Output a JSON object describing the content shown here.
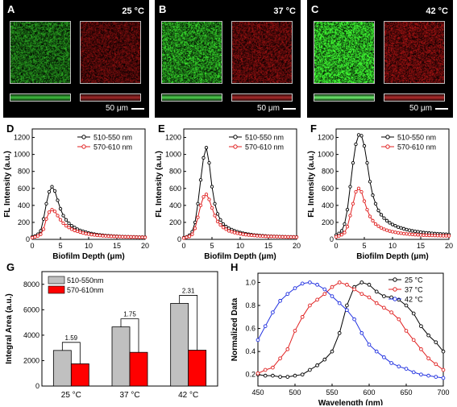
{
  "micrographs": [
    {
      "label": "A",
      "temp": "25 °C",
      "scale": "50 μm",
      "green": "#2c9a2c",
      "red": "#8a1d1d",
      "green_level": 0.45,
      "red_level": 0.4
    },
    {
      "label": "B",
      "temp": "37 °C",
      "scale": "50 μm",
      "green": "#37b037",
      "red": "#8a1d1d",
      "green_level": 0.6,
      "red_level": 0.45
    },
    {
      "label": "C",
      "temp": "42 °C",
      "scale": "50 μm",
      "green": "#5fe05f",
      "red": "#8f2020",
      "green_level": 0.85,
      "red_level": 0.5
    }
  ],
  "chart_data": [
    {
      "panel": "D",
      "type": "line",
      "xlabel": "Biofilm Depth (μm)",
      "ylabel": "FL Intensity (a.u.)",
      "xlim": [
        0,
        20
      ],
      "ylim": [
        0,
        1300
      ],
      "xticks": [
        "0",
        "5",
        "10",
        "15",
        "20"
      ],
      "yticks": [
        "0",
        "200",
        "400",
        "600",
        "800",
        "1000",
        "1200"
      ],
      "legend": "top-right",
      "x": [
        0,
        0.5,
        1,
        1.5,
        2,
        2.5,
        3,
        3.5,
        4,
        4.5,
        5,
        5.5,
        6,
        6.5,
        7,
        7.5,
        8,
        8.5,
        9,
        9.5,
        10,
        10.5,
        11,
        11.5,
        12,
        12.5,
        13,
        13.5,
        14,
        14.5,
        15,
        15.5,
        16,
        16.5,
        17,
        17.5,
        18,
        18.5,
        19,
        19.5,
        20
      ],
      "series": [
        {
          "name": "510-550 nm",
          "color": "#000000",
          "values": [
            30,
            40,
            60,
            100,
            240,
            420,
            560,
            620,
            570,
            460,
            360,
            280,
            230,
            190,
            160,
            140,
            120,
            105,
            95,
            85,
            75,
            68,
            62,
            56,
            52,
            48,
            45,
            42,
            40,
            38,
            36,
            34,
            33,
            32,
            31,
            30,
            29,
            28,
            27,
            27,
            26
          ]
        },
        {
          "name": "570-610 nm",
          "color": "#e02020",
          "values": [
            20,
            30,
            40,
            60,
            120,
            240,
            320,
            350,
            330,
            280,
            230,
            190,
            160,
            140,
            120,
            105,
            95,
            85,
            75,
            68,
            62,
            56,
            52,
            48,
            45,
            42,
            40,
            38,
            36,
            34,
            33,
            32,
            31,
            30,
            29,
            28,
            27,
            26,
            25,
            25,
            24
          ]
        }
      ]
    },
    {
      "panel": "E",
      "type": "line",
      "xlabel": "Biofilm Depth (μm)",
      "ylabel": "FL Intensity (a.u.)",
      "xlim": [
        0,
        20
      ],
      "ylim": [
        0,
        1300
      ],
      "xticks": [
        "0",
        "5",
        "10",
        "15",
        "20"
      ],
      "yticks": [
        "0",
        "200",
        "400",
        "600",
        "800",
        "1000",
        "1200"
      ],
      "legend": "top-right",
      "x": [
        0,
        0.5,
        1,
        1.5,
        2,
        2.5,
        3,
        3.5,
        4,
        4.5,
        5,
        5.5,
        6,
        6.5,
        7,
        7.5,
        8,
        8.5,
        9,
        9.5,
        10,
        10.5,
        11,
        11.5,
        12,
        12.5,
        13,
        13.5,
        14,
        14.5,
        15,
        15.5,
        16,
        16.5,
        17,
        17.5,
        18,
        18.5,
        19,
        19.5,
        20
      ],
      "series": [
        {
          "name": "510-550 nm",
          "color": "#000000",
          "values": [
            20,
            30,
            50,
            90,
            200,
            420,
            700,
            960,
            1080,
            900,
            620,
            420,
            300,
            230,
            180,
            150,
            130,
            115,
            100,
            90,
            80,
            72,
            66,
            60,
            55,
            51,
            48,
            45,
            42,
            40,
            38,
            36,
            35,
            34,
            33,
            32,
            31,
            30,
            29,
            29,
            28
          ]
        },
        {
          "name": "570-610 nm",
          "color": "#e02020",
          "values": [
            15,
            25,
            35,
            60,
            130,
            260,
            400,
            500,
            530,
            470,
            370,
            280,
            210,
            170,
            140,
            120,
            100,
            90,
            80,
            72,
            66,
            60,
            55,
            51,
            48,
            45,
            42,
            40,
            38,
            36,
            35,
            34,
            33,
            32,
            31,
            30,
            29,
            28,
            27,
            27,
            26
          ]
        }
      ]
    },
    {
      "panel": "F",
      "type": "line",
      "xlabel": "Biofilm Depth (μm)",
      "ylabel": "FL Intensity (a.u.)",
      "xlim": [
        0,
        20
      ],
      "ylim": [
        0,
        1300
      ],
      "xticks": [
        "0",
        "5",
        "10",
        "15",
        "20"
      ],
      "yticks": [
        "0",
        "200",
        "400",
        "600",
        "800",
        "1000",
        "1200"
      ],
      "legend": "top-right",
      "x": [
        0,
        0.5,
        1,
        1.5,
        2,
        2.5,
        3,
        3.5,
        4,
        4.5,
        5,
        5.5,
        6,
        6.5,
        7,
        7.5,
        8,
        8.5,
        9,
        9.5,
        10,
        10.5,
        11,
        11.5,
        12,
        12.5,
        13,
        13.5,
        14,
        14.5,
        15,
        15.5,
        16,
        16.5,
        17,
        17.5,
        18,
        18.5,
        19,
        19.5,
        20
      ],
      "series": [
        {
          "name": "510-550 nm",
          "color": "#000000",
          "values": [
            50,
            70,
            100,
            180,
            350,
            620,
            900,
            1120,
            1230,
            1220,
            1100,
            900,
            680,
            520,
            420,
            340,
            290,
            250,
            220,
            195,
            175,
            160,
            145,
            135,
            125,
            115,
            108,
            100,
            95,
            90,
            85,
            80,
            77,
            74,
            71,
            68,
            66,
            64,
            62,
            60,
            58
          ]
        },
        {
          "name": "570-610 nm",
          "color": "#e02020",
          "values": [
            30,
            40,
            55,
            80,
            150,
            280,
            420,
            560,
            600,
            560,
            450,
            350,
            270,
            220,
            180,
            155,
            135,
            120,
            108,
            98,
            90,
            83,
            77,
            72,
            68,
            64,
            61,
            58,
            55,
            53,
            51,
            49,
            48,
            47,
            46,
            45,
            44,
            43,
            42,
            42,
            41
          ]
        }
      ]
    },
    {
      "panel": "G",
      "type": "bar",
      "xlabel": "",
      "ylabel": "Integral Area (a.u.)",
      "ylim": [
        0,
        9000
      ],
      "yticks": [
        "0",
        "2000",
        "4000",
        "6000",
        "8000"
      ],
      "categories": [
        "25 °C",
        "37 °C",
        "42 °C"
      ],
      "legend": "top-left",
      "series": [
        {
          "name": "510-550nm",
          "color": "#c0c0c0",
          "values": [
            2800,
            4650,
            6500
          ]
        },
        {
          "name": "570-610nm",
          "color": "#ff0000",
          "values": [
            1750,
            2650,
            2820
          ]
        }
      ],
      "annotations": [
        "1.59",
        "1.75",
        "2.31"
      ]
    },
    {
      "panel": "H",
      "type": "line",
      "xlabel": "Wavelength (nm)",
      "ylabel": "Normalized Data",
      "xlim": [
        450,
        700
      ],
      "ylim": [
        0.1,
        1.08
      ],
      "xticks": [
        "450",
        "500",
        "550",
        "600",
        "650",
        "700"
      ],
      "yticks": [
        "0.2",
        "0.4",
        "0.6",
        "0.8",
        "1.0"
      ],
      "legend": "top-right",
      "x": [
        450,
        460,
        470,
        480,
        490,
        500,
        510,
        520,
        530,
        540,
        550,
        560,
        570,
        580,
        590,
        600,
        610,
        620,
        630,
        640,
        650,
        660,
        670,
        680,
        690,
        700
      ],
      "series": [
        {
          "name": "25 °C",
          "color": "#000000",
          "values": [
            0.2,
            0.19,
            0.19,
            0.18,
            0.18,
            0.19,
            0.2,
            0.24,
            0.28,
            0.33,
            0.4,
            0.56,
            0.8,
            0.96,
            1.0,
            0.98,
            0.92,
            0.88,
            0.87,
            0.85,
            0.8,
            0.73,
            0.62,
            0.54,
            0.48,
            0.4
          ]
        },
        {
          "name": "37 °C",
          "color": "#e02020",
          "values": [
            0.21,
            0.24,
            0.26,
            0.34,
            0.42,
            0.58,
            0.7,
            0.8,
            0.85,
            0.9,
            0.96,
            1.0,
            0.98,
            0.94,
            0.9,
            0.87,
            0.82,
            0.78,
            0.74,
            0.68,
            0.58,
            0.5,
            0.42,
            0.34,
            0.29,
            0.24
          ]
        },
        {
          "name": "42 °C",
          "color": "#2030e0",
          "values": [
            0.5,
            0.62,
            0.74,
            0.84,
            0.9,
            0.95,
            0.99,
            1.0,
            0.98,
            0.94,
            0.88,
            0.82,
            0.76,
            0.68,
            0.56,
            0.46,
            0.4,
            0.35,
            0.3,
            0.27,
            0.25,
            0.22,
            0.2,
            0.19,
            0.18,
            0.17
          ]
        }
      ]
    }
  ]
}
